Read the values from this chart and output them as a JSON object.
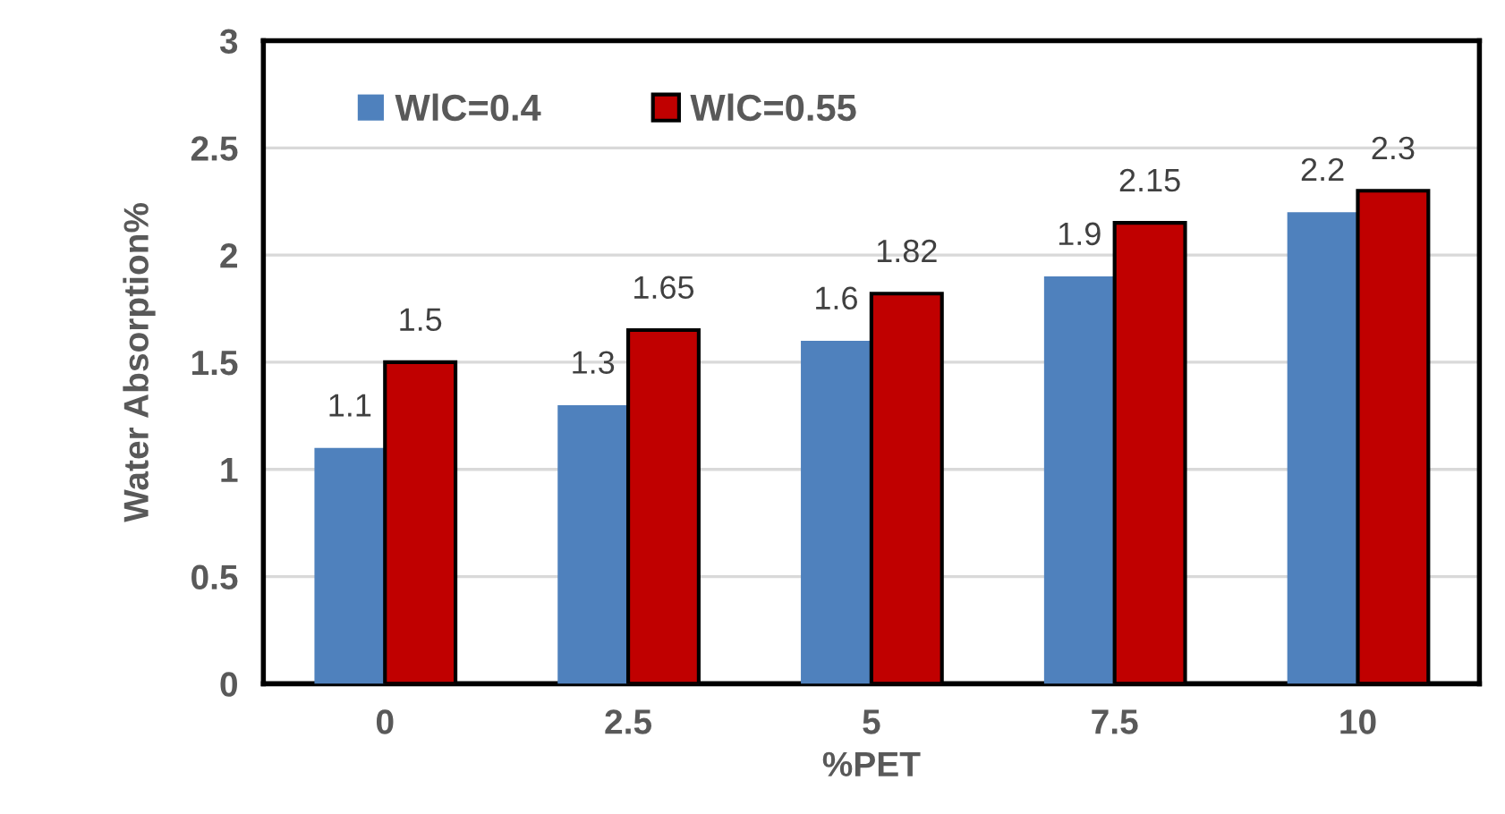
{
  "chart_data": {
    "type": "bar",
    "xlabel": "%PET",
    "ylabel": "Water Absorption%",
    "categories": [
      "0",
      "2.5",
      "5",
      "7.5",
      "10"
    ],
    "series": [
      {
        "name": "WlC=0.4",
        "color": "#4f81bd",
        "values": [
          1.1,
          1.3,
          1.6,
          1.9,
          2.2
        ]
      },
      {
        "name": "WlC=0.55",
        "color": "#c00000",
        "values": [
          1.5,
          1.65,
          1.82,
          2.15,
          2.3
        ]
      }
    ],
    "ylim": [
      0,
      3
    ],
    "yticks": [
      0,
      0.5,
      1,
      1.5,
      2,
      2.5,
      3
    ],
    "grid": "y",
    "legend": "top left",
    "data_labels": true
  }
}
